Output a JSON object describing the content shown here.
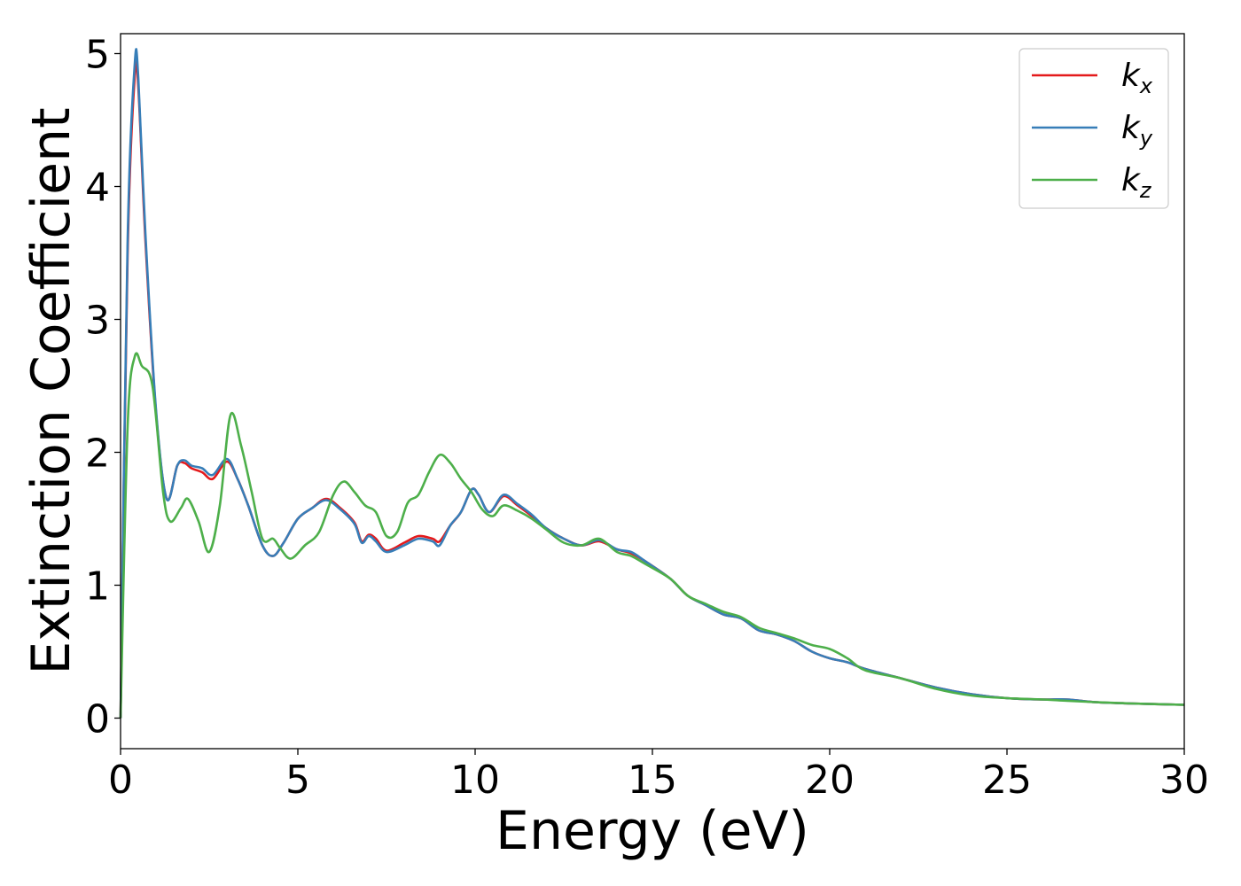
{
  "chart_data": {
    "type": "line",
    "title": "",
    "xlabel": "Energy (eV)",
    "ylabel": "Extinction Coefficient",
    "xlim": [
      0,
      30
    ],
    "ylim": [
      -0.23,
      5.15
    ],
    "xticks": [
      "0",
      "5",
      "10",
      "15",
      "20",
      "25",
      "30"
    ],
    "yticks": [
      "0",
      "1",
      "2",
      "3",
      "4",
      "5"
    ],
    "grid": false,
    "legend_position": "top-right",
    "series": [
      {
        "name": "k",
        "sub": "x",
        "color": "#e41a1c",
        "x": [
          0,
          0.2,
          0.4,
          0.5,
          0.7,
          1.0,
          1.3,
          1.6,
          1.8,
          2.0,
          2.3,
          2.6,
          3.0,
          3.3,
          3.6,
          4.0,
          4.3,
          4.6,
          5.0,
          5.4,
          5.8,
          6.2,
          6.6,
          6.8,
          7.0,
          7.2,
          7.5,
          8.0,
          8.4,
          8.8,
          9.0,
          9.3,
          9.6,
          9.9,
          10.1,
          10.4,
          10.8,
          11.2,
          11.6,
          12.0,
          12.5,
          13.0,
          13.5,
          14.0,
          14.4,
          14.8,
          15.5,
          16.0,
          16.5,
          17.0,
          17.5,
          18.0,
          18.5,
          19.0,
          19.5,
          20.0,
          20.5,
          21.0,
          22.0,
          23.0,
          24.0,
          25.0,
          26.0,
          26.7,
          27.5,
          28.5,
          30.0
        ],
        "y": [
          0.0,
          3.5,
          4.83,
          4.75,
          3.6,
          2.3,
          1.65,
          1.9,
          1.92,
          1.88,
          1.85,
          1.8,
          1.93,
          1.8,
          1.6,
          1.3,
          1.22,
          1.32,
          1.5,
          1.58,
          1.65,
          1.58,
          1.47,
          1.33,
          1.38,
          1.35,
          1.26,
          1.32,
          1.37,
          1.35,
          1.33,
          1.45,
          1.55,
          1.72,
          1.68,
          1.55,
          1.67,
          1.6,
          1.52,
          1.43,
          1.35,
          1.3,
          1.33,
          1.27,
          1.24,
          1.18,
          1.05,
          0.92,
          0.85,
          0.78,
          0.75,
          0.66,
          0.63,
          0.58,
          0.5,
          0.45,
          0.42,
          0.37,
          0.3,
          0.23,
          0.18,
          0.15,
          0.14,
          0.14,
          0.12,
          0.11,
          0.1
        ]
      },
      {
        "name": "k",
        "sub": "y",
        "color": "#377eb8",
        "x": [
          0,
          0.2,
          0.4,
          0.5,
          0.7,
          1.0,
          1.3,
          1.6,
          1.8,
          2.0,
          2.3,
          2.6,
          3.0,
          3.3,
          3.6,
          4.0,
          4.3,
          4.6,
          5.0,
          5.4,
          5.8,
          6.2,
          6.6,
          6.8,
          7.0,
          7.2,
          7.5,
          8.0,
          8.4,
          8.8,
          9.0,
          9.3,
          9.6,
          9.9,
          10.1,
          10.4,
          10.8,
          11.2,
          11.6,
          12.0,
          12.5,
          13.0,
          13.5,
          14.0,
          14.4,
          14.8,
          15.5,
          16.0,
          16.5,
          17.0,
          17.5,
          18.0,
          18.5,
          19.0,
          19.5,
          20.0,
          20.5,
          21.0,
          22.0,
          23.0,
          24.0,
          25.0,
          26.0,
          26.7,
          27.5,
          28.5,
          30.0
        ],
        "y": [
          0.0,
          3.6,
          4.92,
          4.82,
          3.65,
          2.32,
          1.65,
          1.9,
          1.94,
          1.9,
          1.88,
          1.83,
          1.95,
          1.8,
          1.6,
          1.3,
          1.22,
          1.32,
          1.5,
          1.58,
          1.64,
          1.57,
          1.46,
          1.32,
          1.37,
          1.33,
          1.25,
          1.3,
          1.35,
          1.33,
          1.3,
          1.45,
          1.55,
          1.72,
          1.68,
          1.55,
          1.68,
          1.61,
          1.53,
          1.43,
          1.35,
          1.3,
          1.34,
          1.27,
          1.25,
          1.18,
          1.05,
          0.92,
          0.85,
          0.78,
          0.75,
          0.66,
          0.63,
          0.58,
          0.5,
          0.45,
          0.42,
          0.37,
          0.3,
          0.23,
          0.18,
          0.15,
          0.14,
          0.14,
          0.12,
          0.11,
          0.1
        ]
      },
      {
        "name": "k",
        "sub": "z",
        "color": "#4daf4a",
        "x": [
          0,
          0.2,
          0.4,
          0.6,
          0.9,
          1.2,
          1.4,
          1.7,
          1.9,
          2.2,
          2.5,
          2.8,
          3.1,
          3.4,
          3.7,
          4.0,
          4.3,
          4.5,
          4.8,
          5.2,
          5.6,
          6.0,
          6.3,
          6.6,
          6.9,
          7.2,
          7.5,
          7.8,
          8.1,
          8.4,
          8.7,
          9.0,
          9.3,
          9.6,
          9.9,
          10.2,
          10.5,
          10.8,
          11.2,
          11.6,
          12.0,
          12.5,
          13.0,
          13.5,
          14.0,
          14.4,
          14.8,
          15.5,
          16.0,
          16.5,
          17.0,
          17.5,
          18.0,
          18.5,
          19.0,
          19.5,
          20.0,
          20.5,
          21.0,
          22.0,
          23.0,
          24.0,
          25.0,
          26.0,
          26.7,
          27.5,
          28.5,
          30.0
        ],
        "y": [
          0.0,
          2.2,
          2.72,
          2.65,
          2.5,
          1.7,
          1.48,
          1.58,
          1.65,
          1.48,
          1.25,
          1.6,
          2.28,
          2.05,
          1.7,
          1.35,
          1.35,
          1.28,
          1.2,
          1.3,
          1.4,
          1.68,
          1.78,
          1.7,
          1.6,
          1.55,
          1.37,
          1.4,
          1.62,
          1.68,
          1.85,
          1.98,
          1.92,
          1.8,
          1.7,
          1.57,
          1.52,
          1.6,
          1.56,
          1.5,
          1.42,
          1.32,
          1.3,
          1.35,
          1.25,
          1.22,
          1.16,
          1.05,
          0.92,
          0.86,
          0.8,
          0.76,
          0.68,
          0.64,
          0.6,
          0.55,
          0.52,
          0.45,
          0.36,
          0.3,
          0.22,
          0.17,
          0.15,
          0.14,
          0.13,
          0.12,
          0.11,
          0.1
        ]
      }
    ]
  }
}
